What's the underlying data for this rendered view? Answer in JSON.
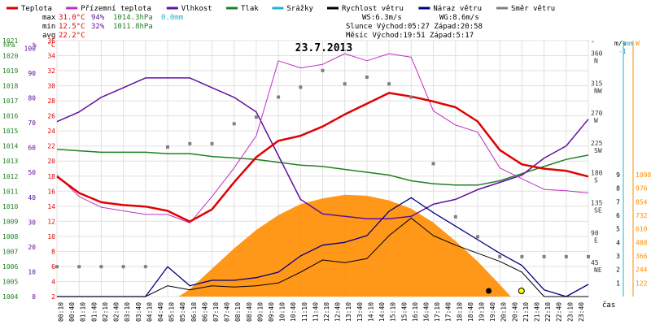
{
  "legend": [
    {
      "label": "Teplota",
      "color": "#e00000"
    },
    {
      "label": "Přízemní teplota",
      "color": "#c030c0"
    },
    {
      "label": "Vlhkost",
      "color": "#6010a0"
    },
    {
      "label": "Tlak",
      "color": "#208020"
    },
    {
      "label": "Srážky",
      "color": "#20b0d0"
    },
    {
      "label": "Rychlost větru",
      "color": "#000000"
    },
    {
      "label": "Náraz větru",
      "color": "#000080"
    },
    {
      "label": "Směr větru",
      "color": "#808080"
    }
  ],
  "stats": {
    "max_label": "max",
    "max_temp": "31.0°C",
    "max_hum": "94%",
    "max_press": "1014.3hPa",
    "max_rain": "0.0mm",
    "min_label": "min",
    "min_temp": "12.5°C",
    "min_hum": "32%",
    "min_press": "1011.8hPa",
    "avg_label": "avg",
    "avg_temp": "22.2°C",
    "ws": "WS:6.3m/s",
    "wg": "WG:8.6m/s",
    "sun": "Slunce Východ:05:27  Západ:20:58",
    "moon": "Měsíc  Východ:19:51  Západ:5:17"
  },
  "colors": {
    "temp": "#e00000",
    "ground": "#c030c0",
    "hum": "#6010a0",
    "press": "#208020",
    "rain": "#20b0d0",
    "wind": "#000000",
    "gust": "#000080",
    "dir": "#808080",
    "solar": "#ff8c00",
    "uv": "#e0801c"
  },
  "chart_data": {
    "type": "line",
    "title": "23.7.2013",
    "xlabel": "čas",
    "x_ticks": [
      "00:10",
      "00:40",
      "01:10",
      "01:40",
      "02:10",
      "02:40",
      "03:10",
      "03:40",
      "04:10",
      "04:40",
      "05:10",
      "05:40",
      "06:10",
      "06:40",
      "07:10",
      "07:40",
      "08:10",
      "08:40",
      "09:10",
      "09:40",
      "10:10",
      "10:40",
      "11:10",
      "11:40",
      "12:10",
      "12:40",
      "13:10",
      "13:40",
      "14:10",
      "14:40",
      "15:10",
      "15:40",
      "16:10",
      "16:40",
      "17:10",
      "17:40",
      "18:10",
      "18:40",
      "19:10",
      "19:40",
      "20:10",
      "20:40",
      "21:10",
      "21:40",
      "22:10",
      "22:40",
      "23:10",
      "23:40"
    ],
    "xlim": [
      0,
      24
    ],
    "axes": {
      "hpa": {
        "label": "hPa",
        "ticks": [
          "1004",
          "1005",
          "1006",
          "1007",
          "1008",
          "1009",
          "1010",
          "1011",
          "1012",
          "1013",
          "1014",
          "1015",
          "1016",
          "1017",
          "1018",
          "1019",
          "1020",
          "1021"
        ]
      },
      "pct": {
        "label": "%",
        "ticks": [
          "0",
          "10",
          "20",
          "30",
          "40",
          "50",
          "60",
          "70",
          "80",
          "90",
          "100"
        ]
      },
      "degc": {
        "label": "°C",
        "ticks": [
          "2",
          "4",
          "6",
          "8",
          "10",
          "12",
          "14",
          "16",
          "18",
          "20",
          "22",
          "24",
          "26",
          "28",
          "30",
          "32",
          "34",
          "36"
        ]
      },
      "dir": {
        "label": "°",
        "ticks": [
          "45\nNE",
          "90\nE",
          "135\nSE",
          "180\nS",
          "225\nSW",
          "270\nW",
          "315\nNW",
          "360\nN"
        ]
      },
      "ms": {
        "label": "m/s",
        "ticks": [
          "1",
          "2",
          "3",
          "4",
          "5",
          "6",
          "7",
          "8",
          "9"
        ]
      },
      "mm": {
        "label": "mm",
        "ticks": [
          "-1"
        ]
      },
      "w": {
        "label": "W",
        "ticks": [
          "122",
          "244",
          "366",
          "488",
          "610",
          "732",
          "854",
          "976",
          "1098"
        ]
      }
    },
    "series": [
      {
        "name": "Teplota",
        "unit": "°C",
        "x": [
          0,
          1,
          2,
          3,
          4,
          5,
          6,
          7,
          8,
          9,
          10,
          11,
          12,
          13,
          14,
          15,
          16,
          17,
          18,
          19,
          20,
          21,
          22,
          23,
          24
        ],
        "y": [
          18.8,
          16.5,
          15.2,
          14.8,
          14.6,
          14.0,
          12.5,
          14.2,
          18.0,
          21.5,
          23.8,
          24.5,
          25.8,
          27.5,
          29.0,
          30.5,
          30.0,
          29.3,
          28.5,
          26.5,
          22.5,
          20.5,
          19.9,
          19.6,
          18.8
        ]
      },
      {
        "name": "Přízemní teplota",
        "unit": "°C",
        "x": [
          0,
          1,
          2,
          3,
          4,
          5,
          6,
          7,
          8,
          9,
          10,
          11,
          12,
          13,
          14,
          15,
          16,
          17,
          18,
          19,
          20,
          21,
          22,
          23,
          24
        ],
        "y": [
          19.0,
          16.0,
          14.5,
          14.0,
          13.5,
          13.5,
          12.3,
          16.0,
          20.0,
          24.5,
          35.0,
          34.0,
          34.5,
          36.0,
          35.0,
          36.0,
          35.5,
          28.0,
          26.0,
          25.0,
          20.0,
          18.5,
          17.0,
          16.8,
          16.5
        ]
      },
      {
        "name": "Vlhkost",
        "unit": "%",
        "x": [
          0,
          1,
          2,
          3,
          4,
          5,
          6,
          7,
          8,
          9,
          10,
          11,
          12,
          13,
          14,
          15,
          16,
          17,
          18,
          19,
          20,
          21,
          22,
          23,
          24
        ],
        "y": [
          72,
          76,
          82,
          86,
          90,
          90,
          90,
          86,
          82,
          76,
          58,
          40,
          34,
          33,
          32,
          32,
          33,
          38,
          40,
          44,
          47,
          50,
          57,
          62,
          73
        ]
      },
      {
        "name": "Tlak",
        "unit": "hPa",
        "x": [
          0,
          1,
          2,
          3,
          4,
          5,
          6,
          7,
          8,
          9,
          10,
          11,
          12,
          13,
          14,
          15,
          16,
          17,
          18,
          19,
          20,
          21,
          22,
          23,
          24
        ],
        "y": [
          1014.3,
          1014.2,
          1014.1,
          1014.1,
          1014.1,
          1014.0,
          1014.0,
          1013.8,
          1013.7,
          1013.6,
          1013.4,
          1013.2,
          1013.1,
          1012.9,
          1012.7,
          1012.5,
          1012.1,
          1011.9,
          1011.8,
          1011.8,
          1012.1,
          1012.6,
          1013.1,
          1013.6,
          1013.9
        ]
      },
      {
        "name": "Rychlost větru",
        "unit": "m/s",
        "x": [
          0,
          1,
          2,
          3,
          4,
          5,
          6,
          7,
          8,
          9,
          10,
          11,
          12,
          13,
          14,
          15,
          16,
          17,
          18,
          19,
          20,
          21,
          22,
          23,
          24
        ],
        "y": [
          0,
          0,
          0,
          0,
          0,
          0.8,
          0.5,
          0.8,
          0.7,
          0.8,
          1.0,
          1.8,
          2.7,
          2.5,
          2.8,
          4.5,
          5.8,
          4.5,
          3.8,
          3.2,
          2.6,
          1.8,
          0,
          0,
          0
        ]
      },
      {
        "name": "Náraz větru",
        "unit": "m/s",
        "x": [
          0,
          1,
          2,
          3,
          4,
          5,
          6,
          7,
          8,
          9,
          10,
          11,
          12,
          13,
          14,
          15,
          16,
          17,
          18,
          19,
          20,
          21,
          22,
          23,
          24
        ],
        "y": [
          0,
          0,
          0,
          0,
          0,
          2.2,
          0.8,
          1.2,
          1.2,
          1.4,
          1.8,
          3.0,
          3.8,
          4.0,
          4.5,
          6.3,
          7.3,
          6.2,
          5.2,
          4.2,
          3.2,
          2.3,
          0.5,
          0,
          0.9
        ]
      },
      {
        "name": "Směr větru",
        "unit": "°",
        "x": [
          0,
          1,
          2,
          3,
          4,
          5,
          6,
          7,
          8,
          9,
          10,
          11,
          12,
          13,
          14,
          15,
          16,
          17,
          18,
          19,
          20,
          21,
          22,
          23,
          24
        ],
        "y": [
          45,
          45,
          45,
          45,
          45,
          225,
          230,
          230,
          260,
          270,
          300,
          315,
          340,
          320,
          330,
          320,
          300,
          200,
          120,
          90,
          60,
          60,
          60,
          60,
          60
        ]
      },
      {
        "name": "Sluneční záření",
        "unit": "W",
        "x": [
          5.5,
          6,
          7,
          8,
          9,
          10,
          11,
          12,
          13,
          14,
          15,
          16,
          17,
          18,
          19,
          20,
          20.5
        ],
        "y": [
          0,
          80,
          300,
          520,
          720,
          880,
          1000,
          1060,
          1100,
          1090,
          1040,
          950,
          800,
          600,
          380,
          130,
          0
        ]
      }
    ]
  }
}
